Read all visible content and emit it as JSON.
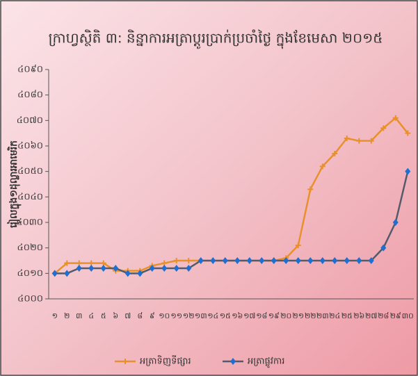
{
  "chart_data": {
    "type": "line",
    "title": "ក្រាហ្វស្ថិតិ ៣: និន្នាការអត្រាប្តូរប្រាក់ប្រចាំថ្ងៃ ក្នុងខែមេសា ២០១៥",
    "y_label": "រៀលក្នុង១ដុល្លារអាមេរិក",
    "categories": [
      "១",
      "២",
      "៣",
      "៤",
      "៥",
      "៦",
      "៧",
      "៨",
      "៩",
      "១០",
      "១១",
      "១២",
      "១៣",
      "១៤",
      "១៥",
      "១៦",
      "១៧",
      "១៨",
      "១៩",
      "២០",
      "២១",
      "២២",
      "២៣",
      "២៤",
      "២៥",
      "២៦",
      "២៧",
      "២៨",
      "២៩",
      "៣០"
    ],
    "series": [
      {
        "name": "អត្រាទិញទីផ្សារ",
        "color": "#e8912c",
        "marker": "plus",
        "values": [
          4010,
          4014,
          4014,
          4014,
          4014,
          4011,
          4011,
          4011,
          4013,
          4014,
          4015,
          4015,
          4015,
          4015,
          4015,
          4015,
          4015,
          4015,
          4015,
          4016,
          4021,
          4043,
          4052,
          4057,
          4063,
          4062,
          4062,
          4067,
          4071,
          4065
        ]
      },
      {
        "name": "អត្រាផ្លូវការ",
        "color": "#1f6fd0",
        "line_color": "#555a6a",
        "marker": "diamond",
        "values": [
          4010,
          4010,
          4012,
          4012,
          4012,
          4012,
          4010,
          4010,
          4012,
          4012,
          4012,
          4012,
          4015,
          4015,
          4015,
          4015,
          4015,
          4015,
          4015,
          4015,
          4015,
          4015,
          4015,
          4015,
          4015,
          4015,
          4015,
          4020,
          4030,
          4050
        ]
      }
    ],
    "ylim": [
      4000,
      4090
    ],
    "yticks": [
      {
        "value": 4000,
        "label": "៤០០០"
      },
      {
        "value": 4010,
        "label": "៤០១០"
      },
      {
        "value": 4020,
        "label": "៤០២០"
      },
      {
        "value": 4030,
        "label": "៤០៣០"
      },
      {
        "value": 4040,
        "label": "៤០៤០"
      },
      {
        "value": 4050,
        "label": "៤០៥០"
      },
      {
        "value": 4060,
        "label": "៤០៦០"
      },
      {
        "value": 4070,
        "label": "៤០៧០"
      },
      {
        "value": 4080,
        "label": "៤០៨០"
      },
      {
        "value": 4090,
        "label": "៤០៩០"
      }
    ],
    "legend": "bottom"
  }
}
